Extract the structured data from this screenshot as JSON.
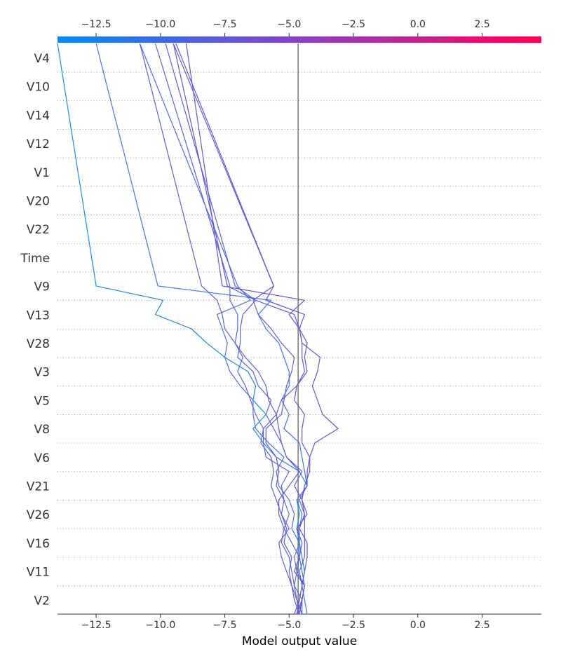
{
  "chart_data": {
    "type": "line",
    "xlabel": "Model output value",
    "xlim": [
      -14.0,
      4.8
    ],
    "base_value": -4.65,
    "x_ticks": [
      -12.5,
      -10.0,
      -7.5,
      -5.0,
      -2.5,
      0.0,
      2.5
    ],
    "x_tick_labels": [
      "−12.5",
      "−10.0",
      "−7.5",
      "−5.0",
      "−2.5",
      "0.0",
      "2.5"
    ],
    "features": [
      "V4",
      "V10",
      "V14",
      "V12",
      "V1",
      "V20",
      "V22",
      "Time",
      "V9",
      "V13",
      "V28",
      "V3",
      "V5",
      "V8",
      "V6",
      "V21",
      "V26",
      "V16",
      "V11",
      "V2"
    ],
    "colorbar": {
      "low_color": "#008bfb",
      "mid_color": "#8a40c8",
      "high_color": "#ff0052"
    },
    "series": [
      {
        "color": "#1e88e5",
        "values": [
          -4.7,
          -4.5,
          -4.4,
          -4.5,
          -4.6,
          -4.6,
          -4.7,
          -4.6,
          -4.7,
          -4.3,
          -4.6,
          -5.5,
          -6.0,
          -6.4,
          -5.9,
          -6.4,
          -6.3,
          -6.6,
          -7.5,
          -8.2,
          -8.8,
          -10.2,
          -9.9,
          -12.5,
          -14.0
        ]
      },
      {
        "color": "#3f7ae0",
        "values": [
          -4.3,
          -4.4,
          -4.5,
          -4.4,
          -4.5,
          -4.6,
          -4.6,
          -4.5,
          -4.7,
          -4.3,
          -4.4,
          -4.5,
          -4.6,
          -5.2,
          -5.0,
          -5.3,
          -5.0,
          -5.0,
          -5.2,
          -5.4,
          -5.9,
          -6.2,
          -5.7,
          -10.1,
          -12.5
        ]
      },
      {
        "color": "#4f6fdc",
        "values": [
          -4.6,
          -4.7,
          -4.8,
          -4.7,
          -4.8,
          -4.6,
          -4.9,
          -4.8,
          -5.0,
          -5.4,
          -5.5,
          -5.2,
          -5.8,
          -6.3,
          -6.4,
          -6.4,
          -6.9,
          -7.3,
          -7.5,
          -7.4,
          -7.6,
          -7.8,
          -6.5,
          -7.0,
          -10.8
        ]
      },
      {
        "color": "#5866d6",
        "values": [
          -4.5,
          -4.5,
          -4.8,
          -4.9,
          -5.0,
          -5.3,
          -5.2,
          -5.0,
          -5.2,
          -5.3,
          -5.0,
          -5.9,
          -6.0,
          -6.0,
          -6.3,
          -6.5,
          -6.7,
          -7.0,
          -6.8,
          -7.1,
          -7.0,
          -7.0,
          -7.3,
          -7.3,
          -10.2
        ]
      },
      {
        "color": "#5a63d4",
        "values": [
          -4.7,
          -4.5,
          -4.4,
          -4.7,
          -4.6,
          -4.9,
          -5.2,
          -5.4,
          -5.4,
          -5.0,
          -4.6,
          -5.1,
          -5.3,
          -5.6,
          -5.9,
          -5.7,
          -6.2,
          -6.4,
          -7.0,
          -6.9,
          -6.9,
          -6.8,
          -6.3,
          -7.1,
          -9.8
        ]
      },
      {
        "color": "#5d60d2",
        "values": [
          -4.6,
          -4.8,
          -4.9,
          -5.0,
          -4.9,
          -5.2,
          -5.1,
          -5.3,
          -5.5,
          -5.7,
          -5.6,
          -5.7,
          -6.1,
          -6.0,
          -5.5,
          -5.8,
          -5.9,
          -6.2,
          -6.7,
          -7.1,
          -7.5,
          -7.6,
          -7.8,
          -8.4,
          -10.8
        ]
      },
      {
        "color": "#5f5ed1",
        "values": [
          -4.5,
          -4.7,
          -4.9,
          -5.1,
          -5.3,
          -5.4,
          -5.0,
          -5.3,
          -5.2,
          -5.5,
          -5.4,
          -5.5,
          -5.9,
          -5.9,
          -5.3,
          -5.2,
          -5.1,
          -4.9,
          -4.8,
          -5.3,
          -5.7,
          -6.2,
          -6.4,
          -5.6,
          -9.5
        ]
      },
      {
        "color": "#615bd0",
        "values": [
          -4.8,
          -4.6,
          -4.5,
          -4.6,
          -4.4,
          -4.4,
          -4.4,
          -4.4,
          -4.5,
          -4.8,
          -4.5,
          -5.1,
          -5.3,
          -5.4,
          -5.5,
          -5.3,
          -4.7,
          -4.4,
          -4.5,
          -4.5,
          -4.6,
          -5.0,
          -4.4,
          -7.6,
          -9.0
        ]
      },
      {
        "color": "#6358ce",
        "values": [
          -4.6,
          -4.5,
          -4.4,
          -4.8,
          -4.6,
          -4.5,
          -4.7,
          -4.3,
          -4.5,
          -4.4,
          -4.2,
          -4.2,
          -4.5,
          -4.5,
          -4.4,
          -4.8,
          -4.7,
          -4.3,
          -4.4,
          -4.3,
          -4.6,
          -4.4,
          -5.9,
          -5.6,
          -9.4
        ]
      },
      {
        "color": "#6556cd",
        "values": [
          -4.7,
          -4.6,
          -4.5,
          -4.4,
          -4.3,
          -4.3,
          -4.6,
          -4.4,
          -4.6,
          -4.3,
          -4.3,
          -4.2,
          -4.0,
          -3.1,
          -3.7,
          -3.9,
          -4.1,
          -3.9,
          -3.8,
          -4.5,
          -4.6,
          -4.8,
          -6.3,
          -7.4,
          -9.5
        ]
      }
    ]
  }
}
